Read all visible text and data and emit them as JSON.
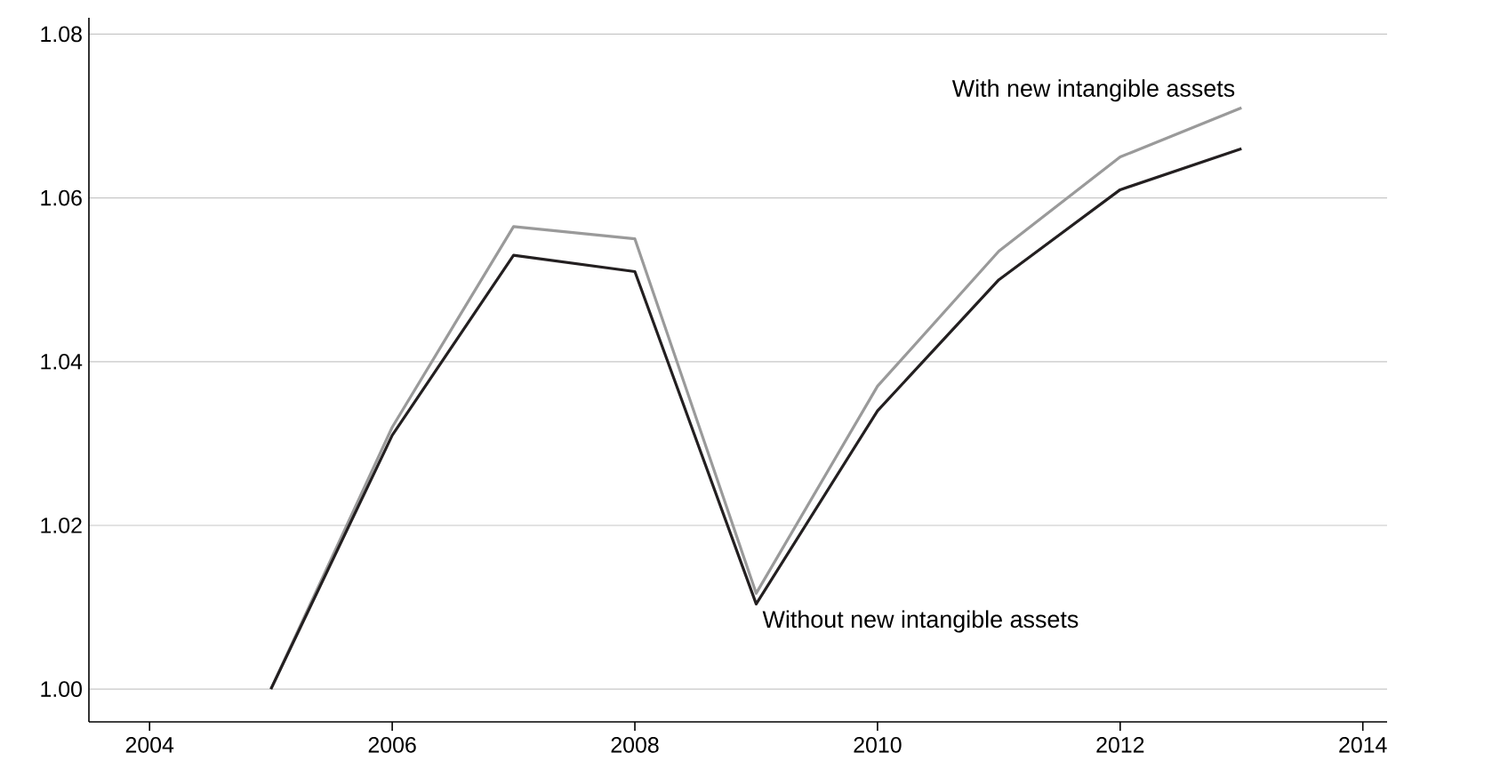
{
  "chart_data": {
    "type": "line",
    "x": [
      2005,
      2006,
      2007,
      2008,
      2009,
      2010,
      2011,
      2012,
      2013
    ],
    "series": [
      {
        "name": "With new intangible assets",
        "color": "#9a9a9a",
        "values": [
          1.0,
          1.032,
          1.0565,
          1.055,
          1.0117,
          1.037,
          1.0535,
          1.065,
          1.071
        ]
      },
      {
        "name": "Without new intangible assets",
        "color": "#231f20",
        "values": [
          1.0,
          1.031,
          1.053,
          1.051,
          1.0104,
          1.034,
          1.05,
          1.061,
          1.066
        ]
      }
    ],
    "xlim": [
      2003.5,
      2014.2
    ],
    "ylim": [
      0.996,
      1.082
    ],
    "xticks": [
      2004,
      2006,
      2008,
      2010,
      2012,
      2014
    ],
    "yticks": [
      {
        "value": 1.0,
        "label": "1.00"
      },
      {
        "value": 1.02,
        "label": "1.02"
      },
      {
        "value": 1.04,
        "label": "1.04"
      },
      {
        "value": 1.06,
        "label": "1.06"
      },
      {
        "value": 1.08,
        "label": "1.08"
      }
    ],
    "grid": "y",
    "legend": false,
    "marker": "none",
    "line_style": "solid"
  }
}
